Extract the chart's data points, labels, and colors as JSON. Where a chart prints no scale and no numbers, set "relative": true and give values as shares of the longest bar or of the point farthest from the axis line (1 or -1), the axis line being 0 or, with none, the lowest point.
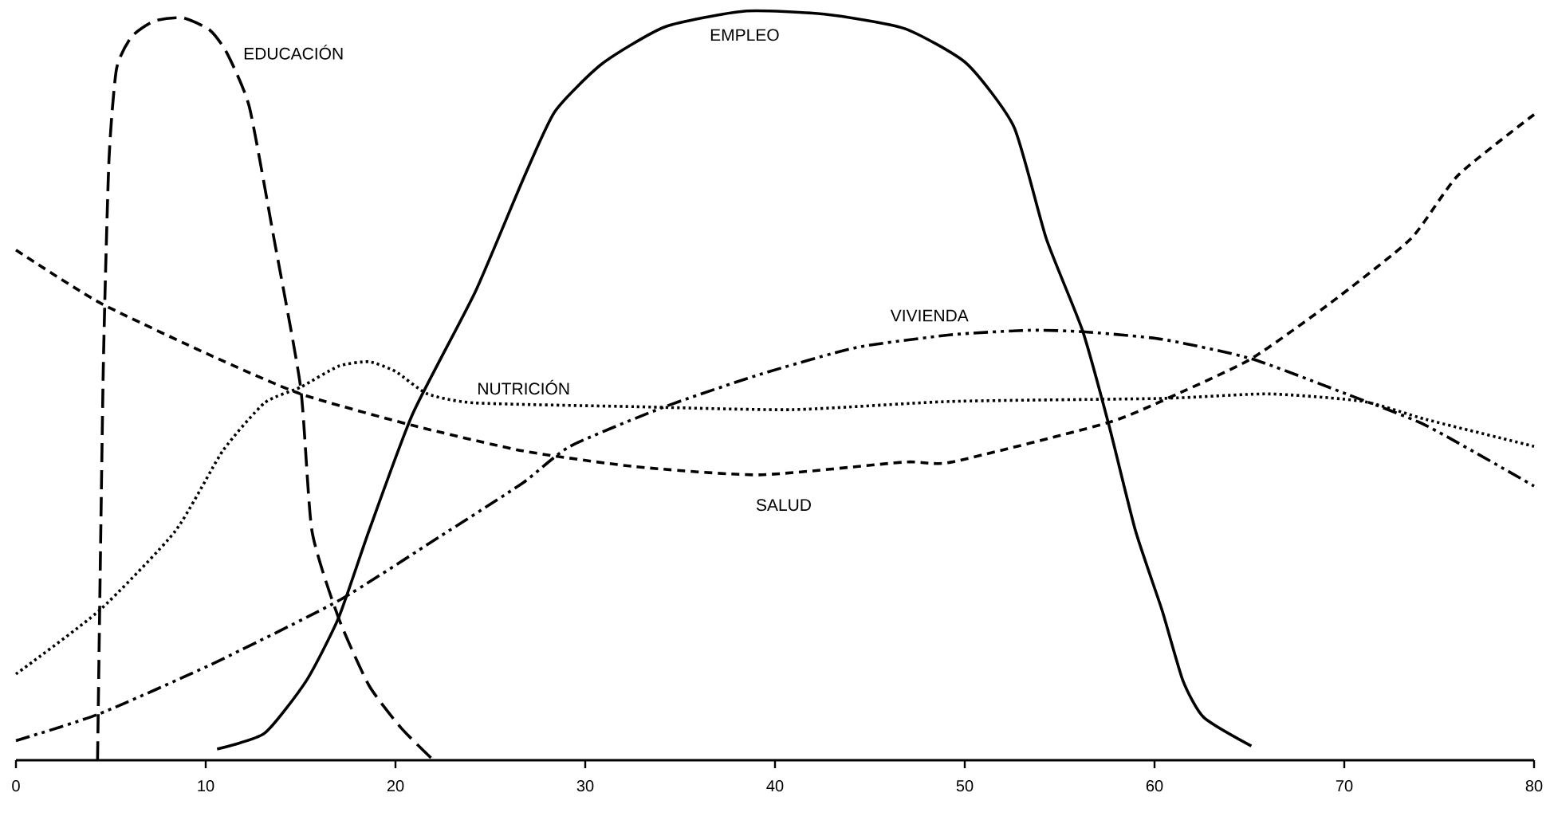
{
  "chart_data": {
    "type": "line",
    "relative": true,
    "xlim": [
      0,
      80
    ],
    "xticks": [
      0,
      10,
      20,
      30,
      40,
      50,
      60,
      70,
      80
    ],
    "series": [
      {
        "name": "EDUCACIÓN",
        "color": "#000000",
        "line_style": "longdashed",
        "x": [
          4.3,
          4.6,
          4.9,
          5.3,
          6.1,
          7.3,
          8.8,
          10.2,
          11.1,
          12.3,
          13.6,
          15.0,
          15.6,
          17.0,
          18.6,
          20.3,
          22.0
        ],
        "values": [
          0,
          0.52,
          0.8,
          0.923,
          0.966,
          0.987,
          0.991,
          0.975,
          0.945,
          0.872,
          0.696,
          0.498,
          0.306,
          0.19,
          0.1,
          0.043,
          0
        ]
      },
      {
        "name": "EMPLEO",
        "color": "#000000",
        "line_style": "solid",
        "x": [
          10.6,
          13.1,
          15.3,
          17.0,
          18.6,
          20.9,
          24.2,
          26.7,
          28.4,
          30.9,
          34.2,
          38.4,
          42.6,
          46.8,
          50.1,
          52.6,
          54.3,
          56.2,
          57.6,
          59.0,
          60.4,
          61.5,
          62.6,
          65.1
        ],
        "values": [
          0.015,
          0.036,
          0.106,
          0.19,
          0.306,
          0.462,
          0.625,
          0.774,
          0.866,
          0.93,
          0.979,
          1,
          0.996,
          0.977,
          0.93,
          0.845,
          0.696,
          0.574,
          0.447,
          0.306,
          0.2,
          0.106,
          0.057,
          0.019
        ]
      },
      {
        "name": "SALUD",
        "color": "#000000",
        "line_style": "dashed",
        "x": [
          0,
          4.4,
          10.3,
          15,
          20.9,
          26.7,
          32.6,
          39.2,
          46.8,
          49.3,
          57.6,
          61.2,
          65.1,
          69.3,
          73.5,
          76,
          80
        ],
        "values": [
          0.681,
          0.611,
          0.54,
          0.489,
          0.447,
          0.413,
          0.392,
          0.381,
          0.398,
          0.398,
          0.451,
          0.489,
          0.536,
          0.611,
          0.696,
          0.781,
          0.862
        ]
      },
      {
        "name": "NUTRICIÓN",
        "color": "#000000",
        "line_style": "dotted",
        "x": [
          0,
          4.4,
          8.4,
          10.9,
          13.1,
          15,
          17,
          18.6,
          20,
          21.7,
          24.2,
          32.6,
          40.9,
          49.3,
          60.4,
          66,
          71,
          74.3,
          80
        ],
        "values": [
          0.115,
          0.2,
          0.306,
          0.413,
          0.477,
          0.498,
          0.526,
          0.532,
          0.519,
          0.489,
          0.477,
          0.472,
          0.468,
          0.479,
          0.483,
          0.489,
          0.479,
          0.455,
          0.419
        ]
      },
      {
        "name": "VIVIENDA",
        "color": "#000000",
        "line_style": "dashdotdotted",
        "x": [
          0,
          4.4,
          10.3,
          17,
          22.3,
          26.7,
          29.2,
          34.2,
          39.2,
          44.3,
          49.3,
          53.4,
          56.2,
          60.4,
          65.1,
          70.1,
          74.3,
          80
        ],
        "values": [
          0.026,
          0.062,
          0.128,
          0.213,
          0.298,
          0.37,
          0.419,
          0.472,
          0.515,
          0.551,
          0.568,
          0.574,
          0.572,
          0.562,
          0.536,
          0.489,
          0.447,
          0.366
        ]
      }
    ]
  }
}
